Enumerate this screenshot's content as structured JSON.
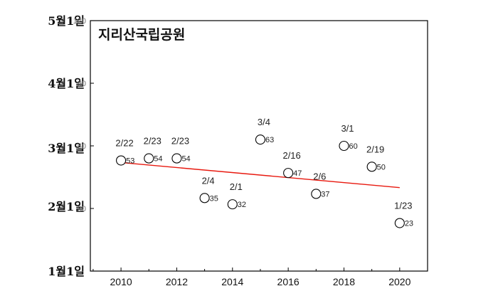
{
  "chart_data": {
    "type": "scatter",
    "title": "지리산국립공원",
    "xlim": [
      2008.9,
      2021
    ],
    "ylim": [
      0,
      120
    ],
    "xticks": [
      2010,
      2012,
      2014,
      2016,
      2018,
      2020
    ],
    "yticks": [
      30,
      60,
      90,
      120
    ],
    "month_labels": [
      {
        "value": 0,
        "label": "1월1일"
      },
      {
        "value": 31,
        "label": "2월1일"
      },
      {
        "value": 59,
        "label": "3월1일"
      },
      {
        "value": 90,
        "label": "4월1일"
      },
      {
        "value": 120,
        "label": "5월1일"
      }
    ],
    "points": [
      {
        "x": 2010,
        "y": 53,
        "date": "2/22",
        "value_label": "53"
      },
      {
        "x": 2011,
        "y": 54,
        "date": "2/23",
        "value_label": "54"
      },
      {
        "x": 2012,
        "y": 54,
        "date": "2/23",
        "value_label": "54"
      },
      {
        "x": 2013,
        "y": 35,
        "date": "2/4",
        "value_label": "35"
      },
      {
        "x": 2014,
        "y": 32,
        "date": "2/1",
        "value_label": "32"
      },
      {
        "x": 2015,
        "y": 63,
        "date": "3/4",
        "value_label": "63"
      },
      {
        "x": 2016,
        "y": 47,
        "date": "2/16",
        "value_label": "47"
      },
      {
        "x": 2017,
        "y": 37,
        "date": "2/6",
        "value_label": "37"
      },
      {
        "x": 2018,
        "y": 60,
        "date": "3/1",
        "value_label": "60"
      },
      {
        "x": 2019,
        "y": 50,
        "date": "2/19",
        "value_label": "50"
      },
      {
        "x": 2020,
        "y": 23,
        "date": "1/23",
        "value_label": "23"
      }
    ],
    "trendline": {
      "x": [
        2010,
        2020
      ],
      "y": [
        52,
        40
      ],
      "color": "#e8190f"
    },
    "marker_color": "#000000",
    "grid": false
  }
}
